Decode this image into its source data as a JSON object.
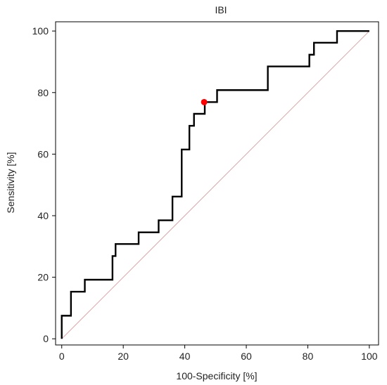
{
  "chart_data": {
    "type": "line",
    "title": "IBI",
    "xlabel": "100-Specificity [%]",
    "ylabel": "Sensitivity [%]",
    "xlim": [
      -2,
      103
    ],
    "ylim": [
      -2,
      103
    ],
    "x_ticks": [
      0,
      20,
      40,
      60,
      80,
      100
    ],
    "y_ticks": [
      0,
      20,
      40,
      60,
      80,
      100
    ],
    "grid": false,
    "series": [
      {
        "style": "step",
        "color": "#000000",
        "x": [
          0,
          0,
          3,
          3,
          7.5,
          7.5,
          16.5,
          16.5,
          17.5,
          17.5,
          25,
          25,
          31.5,
          31.5,
          36,
          36,
          39,
          39,
          41.5,
          41.5,
          43,
          43,
          46.5,
          46.5,
          50.5,
          50.5,
          67,
          67,
          80.5,
          80.5,
          82,
          82,
          89.5,
          89.5,
          100
        ],
        "y": [
          0,
          7.5,
          7.5,
          15.3,
          15.3,
          19.2,
          19.2,
          26.9,
          26.9,
          30.8,
          30.8,
          34.6,
          34.6,
          38.5,
          38.5,
          46.2,
          46.2,
          61.5,
          61.5,
          69.2,
          69.2,
          73.1,
          73.1,
          76.9,
          76.9,
          80.8,
          80.8,
          88.5,
          88.5,
          92.3,
          92.3,
          96.2,
          96.2,
          100,
          100
        ]
      },
      {
        "style": "reference",
        "color": "#d9a8a8",
        "x": [
          0,
          100
        ],
        "y": [
          0,
          100
        ]
      }
    ],
    "highlight_point": {
      "x": 46.3,
      "y": 76.9,
      "color": "#ff0000"
    }
  }
}
